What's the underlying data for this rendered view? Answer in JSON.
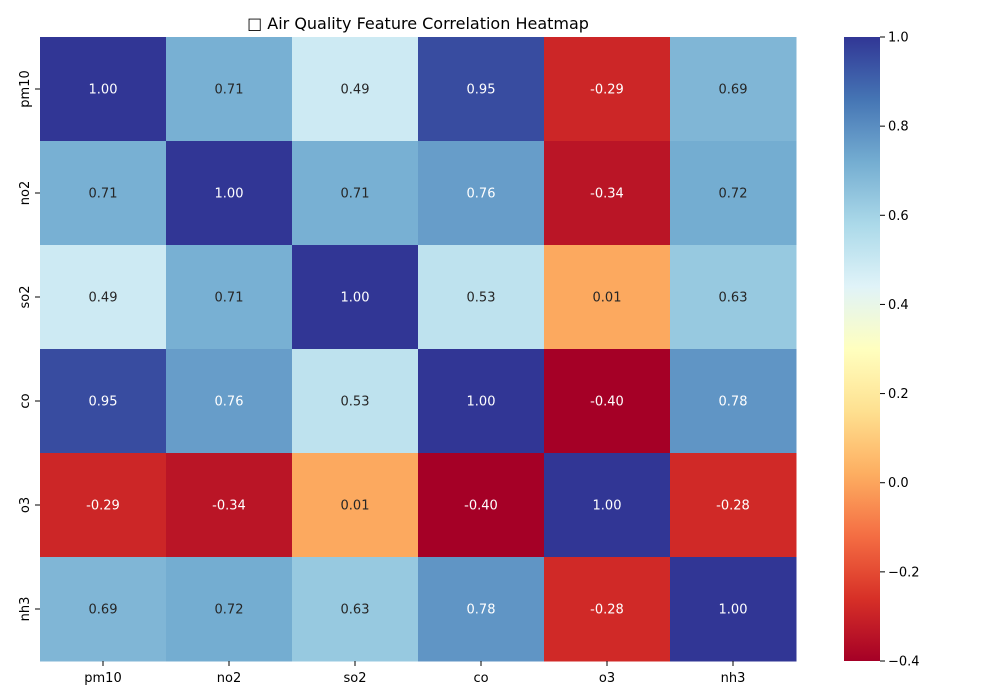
{
  "chart_data": {
    "type": "heatmap",
    "title": "□ Air Quality Feature Correlation Heatmap",
    "x_labels": [
      "pm10",
      "no2",
      "so2",
      "co",
      "o3",
      "nh3"
    ],
    "y_labels": [
      "pm10",
      "no2",
      "so2",
      "co",
      "o3",
      "nh3"
    ],
    "values": [
      [
        1.0,
        0.71,
        0.49,
        0.95,
        -0.29,
        0.69
      ],
      [
        0.71,
        1.0,
        0.71,
        0.76,
        -0.34,
        0.72
      ],
      [
        0.49,
        0.71,
        1.0,
        0.53,
        0.01,
        0.63
      ],
      [
        0.95,
        0.76,
        0.53,
        1.0,
        -0.4,
        0.78
      ],
      [
        -0.29,
        -0.34,
        0.01,
        -0.4,
        1.0,
        -0.28
      ],
      [
        0.69,
        0.72,
        0.63,
        0.78,
        -0.28,
        1.0
      ]
    ],
    "annotation_format": "0.00",
    "colormap": "RdYlBu",
    "vmin": -0.4,
    "vmax": 1.0,
    "colorbar": {
      "ticks": [
        -0.4,
        -0.2,
        0.0,
        0.2,
        0.4,
        0.6,
        0.8,
        1.0
      ],
      "tick_labels": [
        "−0.4",
        "−0.2",
        "0.0",
        "0.2",
        "0.4",
        "0.6",
        "0.8",
        "1.0"
      ],
      "placement": "right"
    },
    "grid": false,
    "legend": "colorbar-right"
  }
}
